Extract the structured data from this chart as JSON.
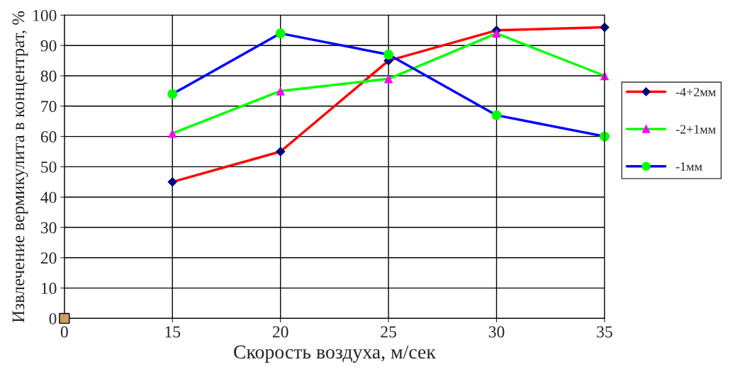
{
  "chart_data": {
    "type": "line",
    "xlabel": "Скорость воздуха, м/сек",
    "ylabel": "Извлечение вермикулита в концентрат, %",
    "categories": [
      "0",
      "15",
      "20",
      "25",
      "30",
      "35"
    ],
    "series": [
      {
        "name": "-4+2мм",
        "color": "#ff0000",
        "colors": [
          "#000080",
          "#000080",
          "#000080",
          "#000080",
          "#000080",
          "#000080"
        ],
        "marker": "diamond",
        "values": [
          null,
          45,
          55,
          85,
          95,
          96
        ]
      },
      {
        "name": "-2+1мм",
        "color": "#00ff00",
        "colors": [
          "#ff00ff",
          "#ff00ff",
          "#ff00ff",
          "#ff00ff",
          "#ff00ff",
          "#ff00ff"
        ],
        "marker": "triangle",
        "values": [
          null,
          61,
          75,
          79,
          94,
          80
        ]
      },
      {
        "name": "-1мм",
        "color": "#0000ff",
        "colors": [
          "#00ff00",
          "#00ff00",
          "#00ff00",
          "#00ff00",
          "#00ff00",
          "#00ff00"
        ],
        "marker": "circle",
        "values": [
          null,
          74,
          94,
          87,
          67,
          60
        ]
      },
      {
        "type": "scatter",
        "color": "#c8a060",
        "marker": "square",
        "values": [
          0,
          null,
          null,
          null,
          null,
          null
        ]
      }
    ],
    "ylim": [
      0,
      100
    ],
    "yticks": [
      0,
      10,
      20,
      30,
      40,
      50,
      60,
      70,
      80,
      90,
      100
    ],
    "grid": true,
    "legend": "right"
  }
}
